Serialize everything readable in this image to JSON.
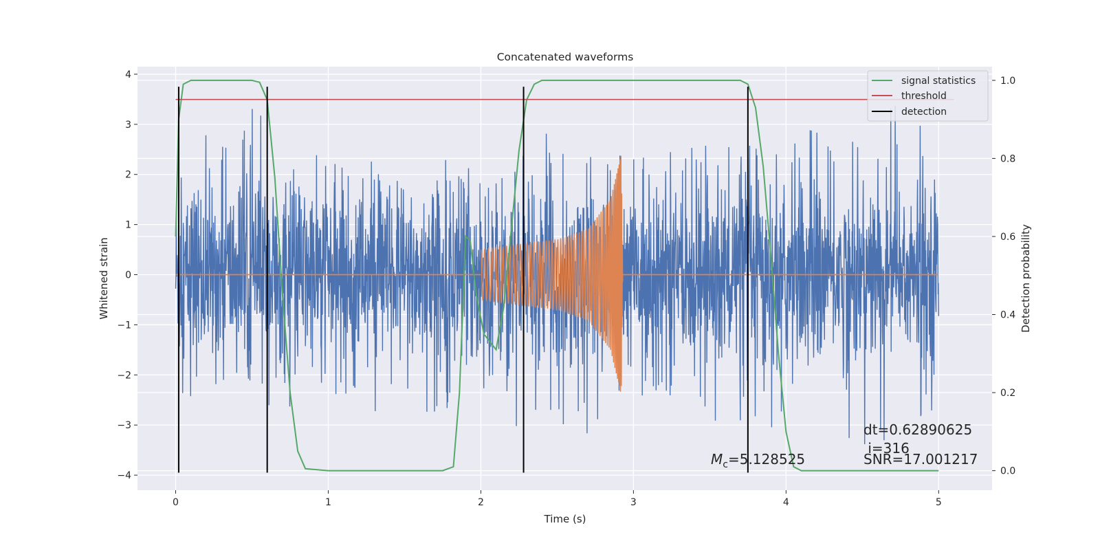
{
  "chart_data": {
    "type": "line",
    "title": "Concatenated waveforms",
    "xlabel": "Time (s)",
    "ylabel": "Whitened strain",
    "ylabel_right": "Detection probability",
    "xlim": [
      -0.25,
      5.35
    ],
    "ylim": [
      -4.3,
      4.15
    ],
    "ylim_right": [
      -0.05,
      1.035
    ],
    "xticks": [
      0,
      1,
      2,
      3,
      4,
      5
    ],
    "yticks": [
      -4,
      -3,
      -2,
      -1,
      0,
      1,
      2,
      3,
      4
    ],
    "yticks_right": [
      0.0,
      0.2,
      0.4,
      0.6,
      0.8,
      1.0
    ],
    "xtick_labels": [
      "0",
      "1",
      "2",
      "3",
      "4",
      "5"
    ],
    "ytick_labels": [
      "−4",
      "−3",
      "−2",
      "−1",
      "0",
      "1",
      "2",
      "3",
      "4"
    ],
    "ytick_right_labels": [
      "0.0",
      "0.2",
      "0.4",
      "0.6",
      "0.8",
      "1.0"
    ],
    "grid": true,
    "legend_position": "top-right",
    "series": [
      {
        "name": "",
        "axis": "left",
        "kind": "noise",
        "color": "#4c72b0",
        "x_range": [
          0,
          5
        ],
        "typical_amplitude": 0.9,
        "envelope": {
          "x": [
            0,
            0.5,
            1,
            1.5,
            2,
            2.5,
            3,
            3.5,
            4,
            4.5,
            5
          ],
          "max": [
            2.4,
            3.4,
            2.2,
            2.3,
            2.3,
            2.9,
            2.3,
            2.6,
            2.7,
            3.5,
            3.3
          ],
          "min": [
            -2.9,
            -2.7,
            -2.6,
            -2.8,
            -2.7,
            -3.4,
            -2.8,
            -3.0,
            -3.1,
            -3.9,
            -2.7
          ]
        }
      },
      {
        "name": "",
        "axis": "left",
        "kind": "chirp",
        "color": "#dd8452",
        "x": [
          2.0,
          2.5,
          2.7,
          2.85,
          2.92,
          2.93
        ],
        "amplitude": [
          0.5,
          0.7,
          0.9,
          1.5,
          2.4,
          0.0
        ],
        "baseline": 0
      },
      {
        "name": "signal statistics",
        "axis": "right",
        "color": "#55a868",
        "x": [
          0,
          0.02,
          0.05,
          0.1,
          0.2,
          0.5,
          0.55,
          0.6,
          0.65,
          0.7,
          0.75,
          0.8,
          0.85,
          1.0,
          1.5,
          1.75,
          1.82,
          1.86,
          1.9,
          1.93,
          1.97,
          2.02,
          2.1,
          2.15,
          2.2,
          2.25,
          2.3,
          2.35,
          2.4,
          2.5,
          3.0,
          3.5,
          3.7,
          3.75,
          3.8,
          3.85,
          3.9,
          3.95,
          4.0,
          4.05,
          4.1,
          4.5,
          5.0
        ],
        "y": [
          0.6,
          0.9,
          0.99,
          1.0,
          1.0,
          1.0,
          0.995,
          0.95,
          0.75,
          0.45,
          0.2,
          0.05,
          0.005,
          0.0,
          0.0,
          0.0,
          0.01,
          0.2,
          0.6,
          0.59,
          0.45,
          0.35,
          0.31,
          0.42,
          0.62,
          0.82,
          0.95,
          0.99,
          1.0,
          1.0,
          1.0,
          1.0,
          1.0,
          0.99,
          0.93,
          0.78,
          0.55,
          0.3,
          0.1,
          0.01,
          0.0,
          0.0,
          0.0
        ]
      },
      {
        "name": "threshold",
        "axis": "right",
        "color": "#c44e52",
        "x": [
          0,
          5.1
        ],
        "y": [
          0.951,
          0.951
        ]
      }
    ],
    "detections": {
      "name": "detection",
      "color": "#000000",
      "x": [
        0.02,
        0.6,
        2.28,
        3.75
      ],
      "y_range": [
        -3.95,
        3.75
      ]
    },
    "annotations": {
      "mc_label": "=5.128525",
      "dt_label": "dt=0.62890625",
      "i_label": " i=316",
      "snr_label": "SNR=17.001217"
    }
  }
}
